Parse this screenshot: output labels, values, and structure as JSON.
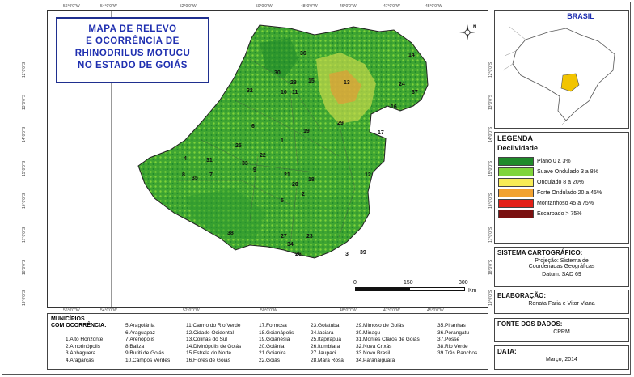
{
  "title": {
    "lines": [
      "MAPA DE RELEVO",
      "E OCORRÊNCIA DE",
      "RHINODRILUS MOTUCU",
      "NO ESTADO DE GOIÁS"
    ]
  },
  "grid": {
    "top_lon": [
      "56°0'0\"W",
      "54°0'0\"W",
      "52°0'0\"W",
      "50°0'0\"W",
      "48°0'0\"W",
      "46°0'0\"W",
      "47°0'0\"W",
      "45°0'0\"W"
    ],
    "bottom_lon": [
      "56°0'0\"W",
      "54°0'0\"W",
      "52°0'0\"W",
      "50°0'0\"W",
      "48°0'0\"W",
      "47°0'0\"W",
      "45°0'0\"W"
    ],
    "left_lat": [
      "12°0'0\"S",
      "13°0'0\"S",
      "14°0'0\"S",
      "15°0'0\"S",
      "16°0'0\"S",
      "17°0'0\"S",
      "18°0'0\"S",
      "19°0'0\"S"
    ],
    "right_lat": [
      "12°0'0\"S",
      "13°0'0\"S",
      "14°0'0\"S",
      "15°0'0\"S",
      "16°0'0\"S",
      "17°0'0\"S",
      "18°0'0\"S",
      "19°0'0\"S"
    ]
  },
  "compass": {
    "label": "N"
  },
  "map_numbers": [
    "36",
    "14",
    "32",
    "30",
    "28",
    "15",
    "10",
    "11",
    "24",
    "37",
    "13",
    "16",
    "6",
    "19",
    "29",
    "17",
    "25",
    "1",
    "22",
    "9",
    "4",
    "31",
    "33",
    "7",
    "8",
    "35",
    "21",
    "20",
    "18",
    "2",
    "12",
    "5",
    "38",
    "27",
    "34",
    "23",
    "26",
    "3",
    "39"
  ],
  "scale": {
    "labels": [
      "0",
      "150",
      "300"
    ],
    "unit": "Km"
  },
  "inset": {
    "title": "BRASIL"
  },
  "legend": {
    "title": "LEGENDA",
    "subtitle": "Declividade",
    "items": [
      {
        "label": "Plano 0 a 3%",
        "color": "#1f8a2a"
      },
      {
        "label": "Suave Ondulado 3 a 8%",
        "color": "#7fd43a"
      },
      {
        "label": "Ondulado 8 a 20%",
        "color": "#f7ec56"
      },
      {
        "label": "Forte Ondulado 20 a 45%",
        "color": "#f2a230"
      },
      {
        "label": "Montanhoso 45 a 75%",
        "color": "#e32119"
      },
      {
        "label": "Escarpado > 75%",
        "color": "#7a1010"
      }
    ]
  },
  "sistema": {
    "title": "SISTEMA CARTOGRÁFICO:",
    "lines": [
      "Projeção: Sistema de",
      "Coordenadas Geográficas",
      "Datum: SAD 69"
    ]
  },
  "elaboracao": {
    "title": "ELABORAÇÃO:",
    "text": "Renata Faria e Vitor Viana"
  },
  "fonte": {
    "title": "FONTE DOS DADOS:",
    "text": "CPRM"
  },
  "data": {
    "title": "DATA:",
    "text": "Março, 2014"
  },
  "municipios": {
    "header": [
      "MUNICÍPIOS",
      "COM OCORRÊNCIA:"
    ],
    "columns": [
      [
        "1.Alto Horizonte",
        "2.Amorinópolis",
        "3.Anhaguera",
        "4.Aragarças"
      ],
      [
        "5.Aragoiânia",
        "6.Araguapaz",
        "7.Arenópolis",
        "8.Baliza",
        "9.Buriti de Goiás",
        "10.Campos Verdes"
      ],
      [
        "11.Carmo do Rio Verde",
        "12.Cidade Ocidental",
        "13.Colinas do Sul",
        "14.Divinópolis de Goiás",
        "15.Estrela do Norte",
        "16.Flores de Goiás"
      ],
      [
        "17.Formosa",
        "18.Goianápolis",
        "19.Goianésia",
        "20.Goiânia",
        "21.Goianira",
        "22.Goiás"
      ],
      [
        "23.Goiatuba",
        "24.Iaciara",
        "25.Itapirapuã",
        "26.Itumbiara",
        "27.Jaupaci",
        "28.Mara Rosa"
      ],
      [
        "29.Mimoso de Goiás",
        "30.Minaçu",
        "31.Montes Claros de Goiás",
        "32.Nova Crixás",
        "33.Novo Brasil",
        "34.Paranaiguara"
      ],
      [
        "35.Piranhas",
        "36.Porangatu",
        "37.Posse",
        "38.Rio Verde",
        "39.Três Ranchos"
      ]
    ]
  }
}
